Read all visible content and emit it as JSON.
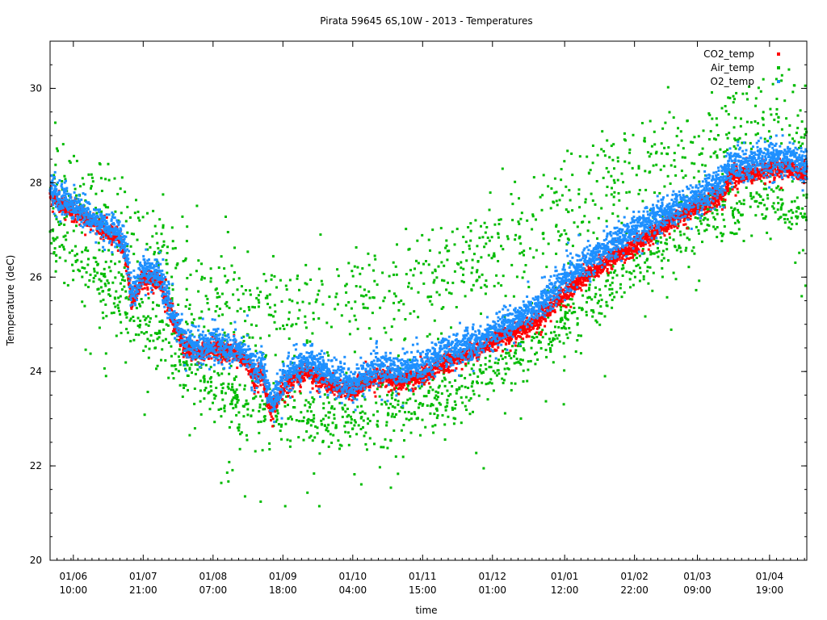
{
  "chart_data": {
    "type": "scatter",
    "title": "Pirata 59645 6S,10W - 2013  - Temperatures",
    "xlabel": "time",
    "ylabel": "Temperature (deC)",
    "ylim": [
      20,
      31
    ],
    "xlim": [
      0,
      325
    ],
    "yticks": [
      20,
      22,
      24,
      26,
      28,
      30
    ],
    "xticks": [
      {
        "t": 10,
        "date": "01/06",
        "time": "10:00"
      },
      {
        "t": 40,
        "date": "01/07",
        "time": "21:00"
      },
      {
        "t": 70,
        "date": "01/08",
        "time": "07:00"
      },
      {
        "t": 100,
        "date": "01/09",
        "time": "18:00"
      },
      {
        "t": 130,
        "date": "01/10",
        "time": "04:00"
      },
      {
        "t": 160,
        "date": "01/11",
        "time": "15:00"
      },
      {
        "t": 190,
        "date": "01/12",
        "time": "01:00"
      },
      {
        "t": 221,
        "date": "01/01",
        "time": "12:00"
      },
      {
        "t": 251,
        "date": "01/02",
        "time": "22:00"
      },
      {
        "t": 278,
        "date": "01/03",
        "time": "09:00"
      },
      {
        "t": 309,
        "date": "01/04",
        "time": "19:00"
      }
    ],
    "legend_position": "top-right",
    "series": [
      {
        "name": "CO2_temp",
        "color": "#ff0000",
        "style": "dense",
        "noise": 0.09,
        "x": [
          0,
          10,
          20,
          30,
          33,
          35,
          40,
          47,
          53,
          58,
          65,
          70,
          75,
          80,
          86,
          88,
          91,
          95,
          99,
          103,
          110,
          118,
          125,
          130,
          140,
          150,
          160,
          168,
          178,
          188,
          198,
          210,
          220,
          232,
          245,
          258,
          270,
          282,
          289,
          292,
          300,
          310,
          318,
          325
        ],
        "y": [
          27.7,
          27.4,
          27.1,
          26.8,
          26.3,
          25.4,
          26.0,
          25.9,
          25.1,
          24.5,
          24.4,
          24.5,
          24.4,
          24.4,
          24.1,
          23.8,
          24.0,
          23.1,
          23.6,
          23.8,
          24.0,
          23.8,
          23.6,
          23.6,
          23.9,
          23.8,
          23.9,
          24.2,
          24.3,
          24.6,
          24.8,
          25.1,
          25.6,
          26.1,
          26.5,
          26.9,
          27.3,
          27.6,
          27.7,
          28.1,
          28.2,
          28.3,
          28.3,
          28.2
        ]
      },
      {
        "name": "Air_temp",
        "color": "#00bb00",
        "style": "sparse",
        "count": 2400,
        "x": [
          0,
          10,
          20,
          30,
          40,
          50,
          60,
          70,
          80,
          90,
          100,
          110,
          120,
          130,
          140,
          150,
          160,
          170,
          180,
          190,
          200,
          210,
          220,
          230,
          240,
          250,
          260,
          270,
          280,
          290,
          300,
          310,
          320,
          325
        ],
        "y": [
          26.8,
          26.5,
          26.0,
          25.5,
          25.0,
          24.6,
          24.1,
          23.7,
          23.4,
          23.2,
          23.0,
          23.0,
          23.0,
          23.0,
          23.1,
          23.2,
          23.3,
          23.5,
          23.7,
          24.0,
          24.3,
          24.6,
          25.0,
          25.4,
          25.8,
          26.2,
          26.6,
          27.0,
          27.3,
          27.5,
          27.6,
          27.6,
          27.5,
          27.4
        ],
        "upper_y": [
          28.0,
          27.8,
          27.5,
          27.1,
          26.7,
          26.3,
          25.9,
          25.6,
          25.4,
          25.3,
          25.3,
          25.3,
          25.4,
          25.5,
          25.7,
          25.8,
          25.9,
          26.1,
          26.3,
          26.6,
          26.9,
          27.2,
          27.5,
          27.8,
          28.1,
          28.4,
          28.6,
          28.8,
          29.0,
          29.1,
          29.2,
          29.3,
          29.2,
          29.1
        ]
      },
      {
        "name": "O2_temp",
        "color": "#1e90ff",
        "style": "dense",
        "noise": 0.16,
        "x": [
          0,
          10,
          20,
          30,
          33,
          35,
          40,
          47,
          53,
          58,
          65,
          70,
          75,
          80,
          86,
          88,
          91,
          95,
          99,
          103,
          110,
          118,
          125,
          130,
          140,
          150,
          160,
          168,
          178,
          188,
          198,
          210,
          220,
          232,
          245,
          258,
          270,
          282,
          289,
          292,
          300,
          310,
          318,
          325
        ],
        "y": [
          27.8,
          27.5,
          27.2,
          26.9,
          26.5,
          25.6,
          26.2,
          26.1,
          25.2,
          24.6,
          24.5,
          24.6,
          24.5,
          24.5,
          24.3,
          24.0,
          24.2,
          23.3,
          23.7,
          24.0,
          24.2,
          24.0,
          23.8,
          23.7,
          24.1,
          24.0,
          24.1,
          24.4,
          24.5,
          24.8,
          25.0,
          25.4,
          25.9,
          26.4,
          26.8,
          27.2,
          27.5,
          27.8,
          28.0,
          28.4,
          28.4,
          28.5,
          28.5,
          28.4
        ]
      }
    ]
  }
}
